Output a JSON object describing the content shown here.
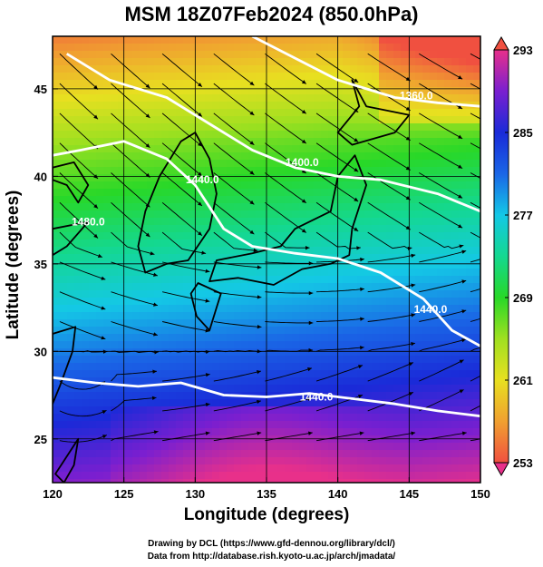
{
  "title": "MSM 18Z07Feb2024 (850.0hPa)",
  "xlabel": "Longitude (degrees)",
  "ylabel": "Latitude  (degrees)",
  "credits": {
    "line1": "Drawing by DCL (https://www.gfd-dennou.org/library/dcl/)",
    "line2": "Data from http://database.rish.kyoto-u.ac.jp/arch/jmadata/"
  },
  "x_ticks": [
    "120",
    "125",
    "130",
    "135",
    "140",
    "145",
    "150"
  ],
  "y_ticks": [
    "25",
    "30",
    "35",
    "40",
    "45"
  ],
  "contour_labels": [
    "1360.0",
    "1400.0",
    "1440.0",
    "1480.0",
    "1440.0",
    "1440.0"
  ],
  "colorbar": {
    "ticks": [
      "293",
      "285",
      "277",
      "269",
      "261",
      "253"
    ],
    "stops": [
      "#e8308a",
      "#7a1fd0",
      "#1a2ad8",
      "#1a66e6",
      "#14c8e6",
      "#14d890",
      "#28d828",
      "#a0e020",
      "#e8e020",
      "#f0a030",
      "#f05040"
    ]
  },
  "chart_data": {
    "type": "heatmap",
    "variable": "temperature with geopotential height contours and streamlines",
    "x_range": [
      120,
      150
    ],
    "y_range": [
      22.5,
      48
    ],
    "color_range": [
      253,
      293
    ],
    "contours": [
      {
        "label": "1360.0",
        "points": [
          [
            134,
            48
          ],
          [
            140,
            45.5
          ],
          [
            144,
            44.5
          ],
          [
            147,
            44.2
          ],
          [
            150,
            44
          ]
        ]
      },
      {
        "label": "1400.0",
        "points": [
          [
            121,
            47
          ],
          [
            124,
            45.5
          ],
          [
            128,
            44.5
          ],
          [
            131,
            43
          ],
          [
            134,
            41.5
          ],
          [
            137,
            40.5
          ],
          [
            140,
            40
          ],
          [
            143,
            39.8
          ],
          [
            147,
            39
          ],
          [
            150,
            38
          ]
        ]
      },
      {
        "label": "1440.0",
        "points": [
          [
            120,
            41.2
          ],
          [
            122,
            41.5
          ],
          [
            125,
            42
          ],
          [
            128,
            41
          ],
          [
            130,
            39.5
          ],
          [
            132,
            37
          ],
          [
            134,
            36
          ],
          [
            137,
            35.6
          ],
          [
            140,
            35.3
          ],
          [
            143,
            34.5
          ],
          [
            146,
            33
          ],
          [
            148,
            31.2
          ],
          [
            150,
            30.3
          ]
        ]
      },
      {
        "label": "1480.0",
        "points": [
          [
            120,
            28.5
          ],
          [
            123,
            28.2
          ],
          [
            126,
            28
          ],
          [
            129,
            28.2
          ],
          [
            132,
            27.5
          ],
          [
            135,
            27.4
          ],
          [
            138,
            27.6
          ],
          [
            141,
            27.3
          ],
          [
            144,
            27
          ],
          [
            147,
            26.6
          ],
          [
            150,
            26.3
          ]
        ]
      }
    ]
  }
}
